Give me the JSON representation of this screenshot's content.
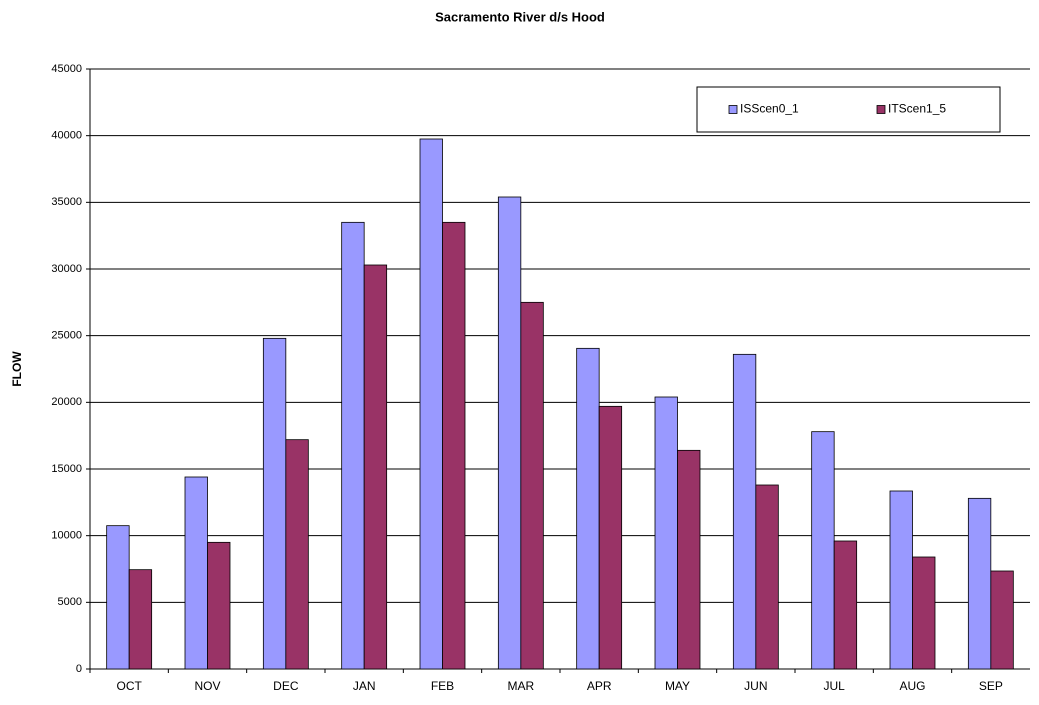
{
  "chart_data": {
    "type": "bar",
    "title": "Sacramento River d/s Hood",
    "y_label": "FLOW",
    "categories": [
      "OCT",
      "NOV",
      "DEC",
      "JAN",
      "FEB",
      "MAR",
      "APR",
      "MAY",
      "JUN",
      "JUL",
      "AUG",
      "SEP"
    ],
    "series": [
      {
        "name": "ISScen0_1",
        "color": "#9999ff",
        "values": [
          10750,
          14400,
          24800,
          33500,
          39750,
          35400,
          24050,
          20400,
          23600,
          17800,
          13350,
          12800
        ]
      },
      {
        "name": "ITScen1_5",
        "color": "#993366",
        "values": [
          7450,
          9500,
          17200,
          30300,
          33500,
          27500,
          19700,
          16400,
          13800,
          9600,
          8400,
          7350
        ]
      }
    ],
    "ylim": [
      0,
      45000
    ],
    "yticks": [
      0,
      5000,
      10000,
      15000,
      20000,
      25000,
      30000,
      35000,
      40000,
      45000
    ],
    "grid": true,
    "legend": "upper right"
  }
}
